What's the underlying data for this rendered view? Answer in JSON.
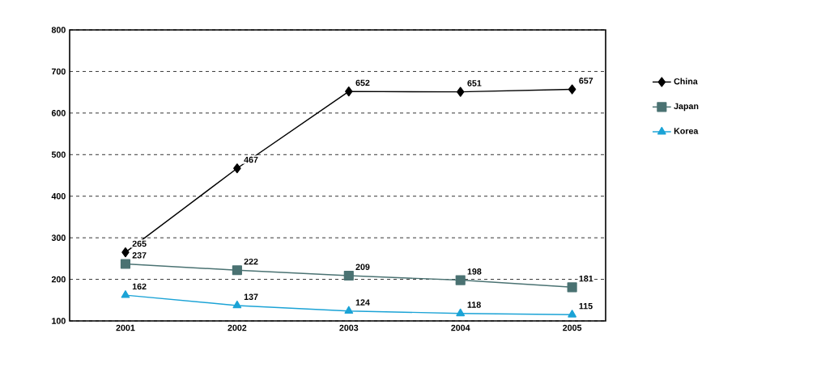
{
  "chart_data": {
    "type": "line",
    "categories": [
      "2001",
      "2002",
      "2003",
      "2004",
      "2005"
    ],
    "series": [
      {
        "name": "China",
        "color": "#000000",
        "marker": "diamond",
        "values": [
          265,
          467,
          652,
          651,
          657
        ]
      },
      {
        "name": "Japan",
        "color": "#4a7272",
        "marker": "square",
        "values": [
          237,
          222,
          209,
          198,
          181
        ]
      },
      {
        "name": "Korea",
        "color": "#1ba3d6",
        "marker": "triangle",
        "values": [
          162,
          137,
          124,
          118,
          115
        ]
      }
    ],
    "ylim": [
      100,
      800
    ],
    "yticks": [
      100,
      200,
      300,
      400,
      500,
      600,
      700,
      800
    ],
    "grid": "y",
    "legend": "right",
    "data_labels": true,
    "line_style": "solid"
  }
}
